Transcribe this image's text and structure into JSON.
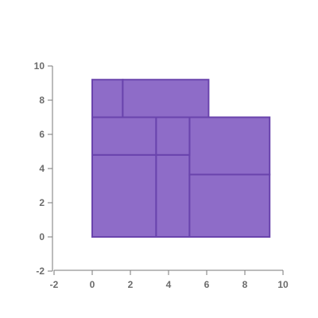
{
  "chart_data": {
    "type": "rectangles",
    "title": "",
    "xlabel": "",
    "ylabel": "",
    "xlim": [
      -2,
      10
    ],
    "ylim": [
      -2,
      10
    ],
    "x_ticks": [
      "-2",
      "0",
      "2",
      "4",
      "6",
      "8",
      "10"
    ],
    "y_ticks": [
      "-2",
      "0",
      "2",
      "4",
      "6",
      "8",
      "10"
    ],
    "grid": false,
    "fill_color": "#8e6cc8",
    "edge_color": "#6a44ad",
    "axis_color": "#7a7a7a",
    "rectangles": [
      {
        "x0": 0,
        "x1": 3.35,
        "y0": 0,
        "y1": 4.8
      },
      {
        "x0": 3.35,
        "x1": 5.1,
        "y0": 0,
        "y1": 4.8
      },
      {
        "x0": 5.1,
        "x1": 9.3,
        "y0": 0,
        "y1": 3.65
      },
      {
        "x0": 5.1,
        "x1": 9.3,
        "y0": 3.65,
        "y1": 7.0
      },
      {
        "x0": 0,
        "x1": 3.35,
        "y0": 4.8,
        "y1": 7.0
      },
      {
        "x0": 3.35,
        "x1": 5.1,
        "y0": 4.8,
        "y1": 7.0
      },
      {
        "x0": 0,
        "x1": 1.6,
        "y0": 7.0,
        "y1": 9.2
      },
      {
        "x0": 1.6,
        "x1": 6.1,
        "y0": 7.0,
        "y1": 9.2
      }
    ]
  }
}
